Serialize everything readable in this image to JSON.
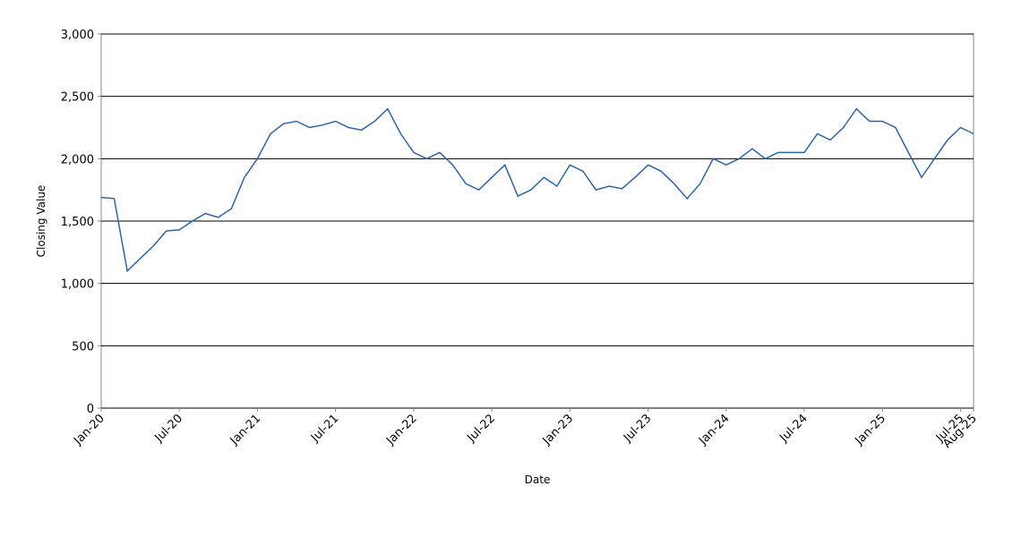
{
  "chart_data": {
    "type": "line",
    "xlabel": "Date",
    "ylabel": "Closing Value",
    "x": [
      "2020-01",
      "2020-02",
      "2020-03",
      "2020-04",
      "2020-05",
      "2020-06",
      "2020-07",
      "2020-08",
      "2020-09",
      "2020-10",
      "2020-11",
      "2020-12",
      "2021-01",
      "2021-02",
      "2021-03",
      "2021-04",
      "2021-05",
      "2021-06",
      "2021-07",
      "2021-08",
      "2021-09",
      "2021-10",
      "2021-11",
      "2021-12",
      "2022-01",
      "2022-02",
      "2022-03",
      "2022-04",
      "2022-05",
      "2022-06",
      "2022-07",
      "2022-08",
      "2022-09",
      "2022-10",
      "2022-11",
      "2022-12",
      "2023-01",
      "2023-02",
      "2023-03",
      "2023-04",
      "2023-05",
      "2023-06",
      "2023-07",
      "2023-08",
      "2023-09",
      "2023-10",
      "2023-11",
      "2023-12",
      "2024-01",
      "2024-02",
      "2024-03",
      "2024-04",
      "2024-05",
      "2024-06",
      "2024-07",
      "2024-08",
      "2024-09",
      "2024-10",
      "2024-11",
      "2024-12",
      "2025-01",
      "2025-02",
      "2025-03",
      "2025-04",
      "2025-05",
      "2025-06",
      "2025-07",
      "2025-08"
    ],
    "series": [
      {
        "name": "Closing Value",
        "color": "#2a64b0",
        "values": [
          1690,
          1680,
          1100,
          1200,
          1300,
          1420,
          1430,
          1500,
          1560,
          1530,
          1600,
          1850,
          2000,
          2200,
          2280,
          2300,
          2250,
          2270,
          2300,
          2250,
          2230,
          2300,
          2400,
          2200,
          2050,
          2000,
          2050,
          1950,
          1800,
          1750,
          1850,
          1950,
          1700,
          1750,
          1850,
          1780,
          1950,
          1900,
          1750,
          1780,
          1760,
          1850,
          1950,
          1900,
          1800,
          1680,
          1800,
          2000,
          1950,
          2000,
          2080,
          2000,
          2050,
          2050,
          2050,
          2200,
          2150,
          2250,
          2400,
          2300,
          2300,
          2250,
          2050,
          1850,
          2000,
          2150,
          2250,
          2200
        ]
      }
    ],
    "xlim": [
      "2020-01",
      "2025-08"
    ],
    "xticks": [
      {
        "value": "2020-01",
        "label": "Jan-20"
      },
      {
        "value": "2020-07",
        "label": "Jul-20"
      },
      {
        "value": "2021-01",
        "label": "Jan-21"
      },
      {
        "value": "2021-07",
        "label": "Jul-21"
      },
      {
        "value": "2022-01",
        "label": "Jan-22"
      },
      {
        "value": "2022-07",
        "label": "Jul-22"
      },
      {
        "value": "2023-01",
        "label": "Jan-23"
      },
      {
        "value": "2023-07",
        "label": "Jul-23"
      },
      {
        "value": "2024-01",
        "label": "Jan-24"
      },
      {
        "value": "2024-07",
        "label": "Jul-24"
      },
      {
        "value": "2025-01",
        "label": "Jan-25"
      },
      {
        "value": "2025-07",
        "label": "Jul-25"
      },
      {
        "value": "2025-08",
        "label": "Aug-25"
      }
    ],
    "ylim": [
      0,
      3000
    ],
    "yticks": [
      0,
      500,
      {
        "value": 1000,
        "label": "1,000"
      },
      {
        "value": 1500,
        "label": "1,500"
      },
      {
        "value": 2000,
        "label": "2,000"
      },
      {
        "value": 2500,
        "label": "2,500"
      },
      {
        "value": 3000,
        "label": "3,000"
      }
    ],
    "grid": true
  }
}
